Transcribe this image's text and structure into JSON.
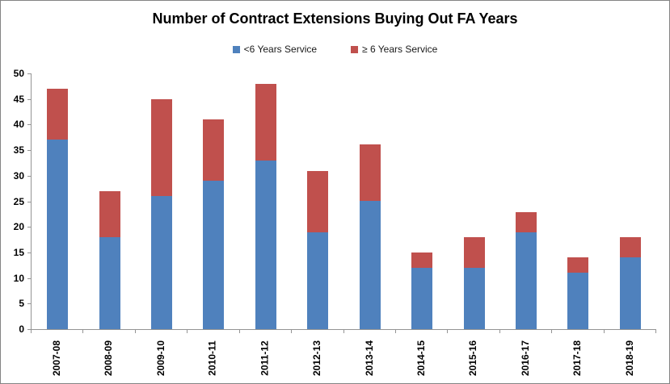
{
  "chart_data": {
    "type": "bar",
    "stacked": true,
    "title": "Number of Contract Extensions Buying Out FA Years",
    "categories": [
      "2007-08",
      "2008-09",
      "2009-10",
      "2010-11",
      "2011-12",
      "2012-13",
      "2013-14",
      "2014-15",
      "2015-16",
      "2016-17",
      "2017-18",
      "2018-19"
    ],
    "series": [
      {
        "name": "<6 Years Service",
        "color": "#4F81BD",
        "values": [
          37,
          18,
          26,
          29,
          33,
          19,
          25,
          12,
          12,
          19,
          11,
          14
        ]
      },
      {
        "name": "≥ 6 Years Service",
        "color": "#C0504D",
        "values": [
          10,
          9,
          19,
          12,
          15,
          12,
          11,
          3,
          6,
          4,
          3,
          4
        ]
      }
    ],
    "totals": [
      47,
      27,
      45,
      41,
      48,
      31,
      36,
      15,
      18,
      23,
      14,
      18
    ],
    "xlabel": "",
    "ylabel": "",
    "ylim": [
      0,
      50
    ],
    "y_step": 5,
    "grid": false,
    "legend_position": "top",
    "colors": {
      "axis": "#949494",
      "frame_border": "#848484",
      "background": "#ffffff",
      "text": "#000000"
    }
  }
}
